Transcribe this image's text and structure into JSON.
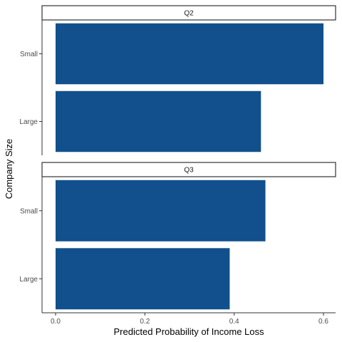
{
  "chart_data": {
    "type": "bar",
    "orientation": "horizontal",
    "facet_by": "quarter",
    "facets": [
      {
        "label": "Q2",
        "categories": [
          "Small",
          "Large"
        ],
        "values": [
          0.6,
          0.46
        ]
      },
      {
        "label": "Q3",
        "categories": [
          "Small",
          "Large"
        ],
        "values": [
          0.47,
          0.39
        ]
      }
    ],
    "xlabel": "Predicted Probability of Income Loss",
    "ylabel": "Company Size",
    "xlim": [
      0,
      0.6
    ],
    "xticks": [
      0.0,
      0.2,
      0.4,
      0.6
    ],
    "xtick_labels": [
      "0.0",
      "0.2",
      "0.4",
      "0.6"
    ],
    "bar_color": "#11508c",
    "grid": false
  }
}
